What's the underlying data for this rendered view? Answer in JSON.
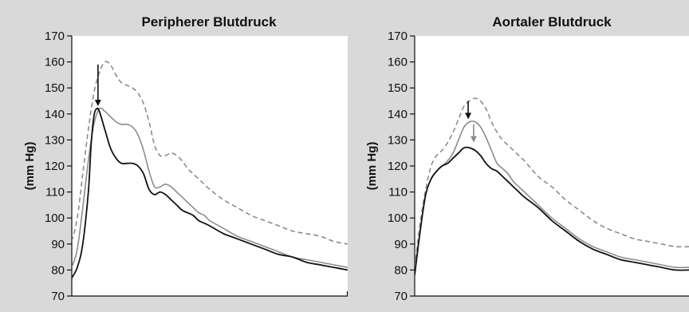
{
  "chart_data": [
    {
      "type": "line",
      "title": "Peripherer Blutdruck",
      "ylabel": "(mm Hg)",
      "xlabel": "",
      "ylim": [
        70,
        170
      ],
      "xlim": [
        0,
        100
      ],
      "yticks": [
        70,
        80,
        90,
        100,
        110,
        120,
        130,
        140,
        150,
        160,
        170
      ],
      "grid": false,
      "series": [
        {
          "style": "dashed",
          "color": "#8c8c8c",
          "x": [
            0,
            2,
            4,
            6,
            8,
            10,
            12,
            14,
            16,
            18,
            20,
            22,
            24,
            26,
            28,
            30,
            32,
            34,
            36,
            38,
            40,
            42,
            44,
            46,
            48,
            50,
            55,
            60,
            65,
            70,
            75,
            80,
            85,
            90,
            95,
            100
          ],
          "y": [
            91,
            100,
            117,
            134,
            148,
            156,
            160,
            159,
            155,
            152,
            151,
            150,
            148,
            144,
            137,
            128,
            124,
            124,
            125,
            124,
            122,
            119,
            117,
            115,
            113,
            111,
            107,
            104,
            101,
            99,
            97,
            95,
            94,
            93,
            91,
            90
          ]
        },
        {
          "style": "solid",
          "color": "#8c8c8c",
          "x": [
            0,
            2,
            4,
            6,
            8,
            10,
            12,
            14,
            16,
            18,
            20,
            22,
            24,
            26,
            28,
            30,
            32,
            34,
            36,
            38,
            40,
            42,
            44,
            46,
            48,
            50,
            55,
            60,
            65,
            70,
            75,
            80,
            85,
            90,
            95,
            100
          ],
          "y": [
            81,
            88,
            104,
            122,
            136,
            142,
            141,
            139,
            137,
            136,
            136,
            135,
            132,
            126,
            118,
            112,
            112,
            113,
            112,
            110,
            108,
            106,
            104,
            102,
            101,
            99,
            96,
            93,
            91,
            89,
            87,
            85,
            84,
            83,
            82,
            81
          ]
        },
        {
          "style": "solid",
          "color": "#111111",
          "x": [
            0,
            2,
            4,
            6,
            7,
            8,
            9,
            10,
            12,
            14,
            16,
            18,
            20,
            22,
            24,
            26,
            28,
            30,
            32,
            34,
            36,
            38,
            40,
            42,
            44,
            46,
            48,
            50,
            55,
            60,
            65,
            70,
            75,
            80,
            85,
            90,
            95,
            100
          ],
          "y": [
            77,
            81,
            90,
            110,
            128,
            139,
            142,
            141,
            134,
            127,
            123,
            121,
            121,
            121,
            120,
            117,
            111,
            109,
            110,
            109,
            107,
            105,
            103,
            102,
            101,
            99,
            98,
            97,
            94,
            92,
            90,
            88,
            86,
            85,
            83,
            82,
            81,
            80
          ]
        }
      ],
      "arrows": [
        {
          "color": "#111111",
          "x": 9.5,
          "from": 159,
          "to": 143
        }
      ]
    },
    {
      "type": "line",
      "title": "Aortaler Blutdruck",
      "ylabel": "(mm Hg)",
      "xlabel": "",
      "ylim": [
        70,
        170
      ],
      "xlim": [
        0,
        100
      ],
      "yticks": [
        70,
        80,
        90,
        100,
        110,
        120,
        130,
        140,
        150,
        160,
        170
      ],
      "grid": false,
      "series": [
        {
          "style": "dashed",
          "color": "#8c8c8c",
          "x": [
            0,
            2,
            4,
            6,
            8,
            10,
            12,
            14,
            16,
            18,
            20,
            22,
            24,
            26,
            28,
            30,
            32,
            34,
            36,
            38,
            40,
            45,
            50,
            55,
            60,
            65,
            70,
            75,
            80,
            85,
            90,
            95,
            100
          ],
          "y": [
            81,
            98,
            111,
            120,
            124,
            126,
            129,
            133,
            138,
            143,
            145,
            146,
            145,
            142,
            137,
            133,
            130,
            128,
            126,
            124,
            122,
            116,
            112,
            107,
            103,
            99,
            96,
            94,
            92,
            91,
            90,
            89,
            89
          ]
        },
        {
          "style": "solid",
          "color": "#8c8c8c",
          "x": [
            0,
            2,
            4,
            6,
            8,
            10,
            12,
            14,
            16,
            18,
            20,
            22,
            24,
            26,
            28,
            30,
            32,
            34,
            36,
            38,
            40,
            45,
            50,
            55,
            60,
            65,
            70,
            75,
            80,
            85,
            90,
            95,
            100
          ],
          "y": [
            79,
            95,
            109,
            115,
            118,
            120,
            122,
            125,
            130,
            135,
            137,
            137,
            135,
            131,
            126,
            121,
            119,
            117,
            114,
            112,
            110,
            105,
            100,
            96,
            92,
            89,
            87,
            85,
            84,
            83,
            82,
            81,
            81
          ]
        },
        {
          "style": "solid",
          "color": "#111111",
          "x": [
            0,
            2,
            4,
            6,
            8,
            10,
            12,
            14,
            16,
            18,
            20,
            22,
            24,
            26,
            28,
            30,
            32,
            34,
            36,
            38,
            40,
            45,
            50,
            55,
            60,
            65,
            70,
            75,
            80,
            85,
            90,
            95,
            100
          ],
          "y": [
            78,
            95,
            109,
            115,
            118,
            120,
            121,
            123,
            125,
            127,
            127,
            126,
            124,
            121,
            119,
            118,
            116,
            114,
            112,
            110,
            108,
            104,
            99,
            95,
            91,
            88,
            86,
            84,
            83,
            82,
            81,
            80,
            80
          ]
        }
      ],
      "arrows": [
        {
          "color": "#111111",
          "x": 19.5,
          "from": 145,
          "to": 138
        },
        {
          "color": "#8c8c8c",
          "x": 21.5,
          "from": 136,
          "to": 129
        }
      ]
    }
  ]
}
